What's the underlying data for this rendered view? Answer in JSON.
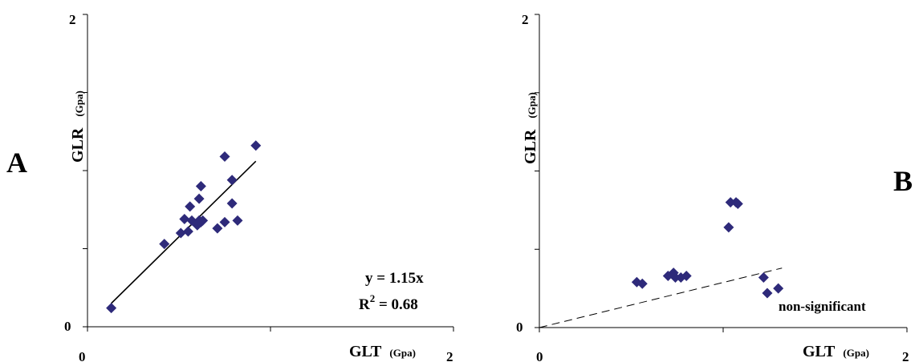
{
  "chart_data": [
    {
      "type": "scatter",
      "panel_label": "A",
      "xlim": [
        0,
        2
      ],
      "ylim": [
        0,
        2
      ],
      "x_ticks": [
        0,
        2
      ],
      "y_ticks": [
        0,
        2
      ],
      "xlabel": {
        "main": "GLT",
        "unit": "(Gpa)"
      },
      "ylabel": {
        "main": "GLR",
        "unit": "(Gpa)"
      },
      "marker_color": "#2e2a7a",
      "points": [
        {
          "x": 0.13,
          "y": 0.12
        },
        {
          "x": 0.42,
          "y": 0.53
        },
        {
          "x": 0.51,
          "y": 0.6
        },
        {
          "x": 0.55,
          "y": 0.61
        },
        {
          "x": 0.53,
          "y": 0.69
        },
        {
          "x": 0.57,
          "y": 0.68
        },
        {
          "x": 0.6,
          "y": 0.65
        },
        {
          "x": 0.62,
          "y": 0.67
        },
        {
          "x": 0.63,
          "y": 0.68
        },
        {
          "x": 0.71,
          "y": 0.63
        },
        {
          "x": 0.56,
          "y": 0.77
        },
        {
          "x": 0.61,
          "y": 0.68
        },
        {
          "x": 0.61,
          "y": 0.82
        },
        {
          "x": 0.62,
          "y": 0.9
        },
        {
          "x": 0.75,
          "y": 0.67
        },
        {
          "x": 0.79,
          "y": 0.79
        },
        {
          "x": 0.82,
          "y": 0.68
        },
        {
          "x": 0.79,
          "y": 0.94
        },
        {
          "x": 0.75,
          "y": 1.09
        },
        {
          "x": 0.92,
          "y": 1.16
        }
      ],
      "trendline": {
        "style": "solid",
        "x": [
          0.13,
          0.92
        ],
        "y": [
          0.15,
          1.06
        ]
      },
      "annotations": [
        "y = 1.15x",
        "R",
        "2",
        " = 0.68"
      ]
    },
    {
      "type": "scatter",
      "panel_label": "B",
      "xlim": [
        0,
        2
      ],
      "ylim": [
        0,
        2
      ],
      "x_ticks": [
        0,
        2
      ],
      "y_ticks": [
        0,
        2
      ],
      "xlabel": {
        "main": "GLT",
        "unit": "(Gpa)"
      },
      "ylabel": {
        "main": "GLR",
        "unit": "(Gpa)"
      },
      "marker_color": "#2e2a7a",
      "points": [
        {
          "x": 0.53,
          "y": 0.29
        },
        {
          "x": 0.56,
          "y": 0.28
        },
        {
          "x": 0.7,
          "y": 0.33
        },
        {
          "x": 0.73,
          "y": 0.35
        },
        {
          "x": 0.74,
          "y": 0.32
        },
        {
          "x": 0.77,
          "y": 0.32
        },
        {
          "x": 0.8,
          "y": 0.33
        },
        {
          "x": 1.04,
          "y": 0.8
        },
        {
          "x": 1.07,
          "y": 0.8
        },
        {
          "x": 1.08,
          "y": 0.79
        },
        {
          "x": 1.03,
          "y": 0.64
        },
        {
          "x": 1.22,
          "y": 0.32
        },
        {
          "x": 1.24,
          "y": 0.22
        },
        {
          "x": 1.3,
          "y": 0.25
        }
      ],
      "trendline": {
        "style": "dashed",
        "x": [
          0.0,
          1.32
        ],
        "y": [
          0.0,
          0.38
        ]
      },
      "annotations": [
        "non-significant"
      ]
    }
  ]
}
